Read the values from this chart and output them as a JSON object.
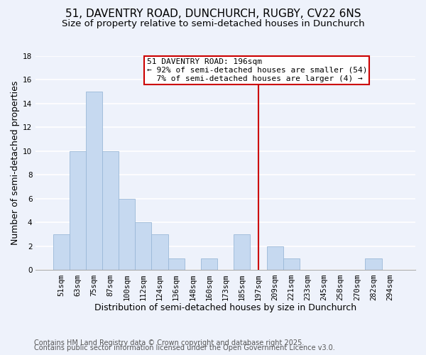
{
  "title": "51, DAVENTRY ROAD, DUNCHURCH, RUGBY, CV22 6NS",
  "subtitle": "Size of property relative to semi-detached houses in Dunchurch",
  "xlabel": "Distribution of semi-detached houses by size in Dunchurch",
  "ylabel": "Number of semi-detached properties",
  "footer_lines": [
    "Contains HM Land Registry data © Crown copyright and database right 2025.",
    "Contains public sector information licensed under the Open Government Licence v3.0."
  ],
  "bin_labels": [
    "51sqm",
    "63sqm",
    "75sqm",
    "87sqm",
    "100sqm",
    "112sqm",
    "124sqm",
    "136sqm",
    "148sqm",
    "160sqm",
    "173sqm",
    "185sqm",
    "197sqm",
    "209sqm",
    "221sqm",
    "233sqm",
    "245sqm",
    "258sqm",
    "270sqm",
    "282sqm",
    "294sqm"
  ],
  "bar_heights": [
    3,
    10,
    15,
    10,
    6,
    4,
    3,
    1,
    0,
    1,
    0,
    3,
    0,
    2,
    1,
    0,
    0,
    0,
    0,
    1,
    0
  ],
  "bar_color": "#c6d9f0",
  "bar_edge_color": "#9ab8d8",
  "vline_x_index": 12,
  "vline_color": "#cc0000",
  "annotation_title": "51 DAVENTRY ROAD: 196sqm",
  "annotation_line1": "← 92% of semi-detached houses are smaller (54)",
  "annotation_line2": "  7% of semi-detached houses are larger (4) →",
  "annotation_box_color": "#ffffff",
  "annotation_box_edge": "#cc0000",
  "ylim": [
    0,
    18
  ],
  "yticks": [
    0,
    2,
    4,
    6,
    8,
    10,
    12,
    14,
    16,
    18
  ],
  "bg_color": "#eef2fb",
  "grid_color": "#ffffff",
  "title_fontsize": 11,
  "subtitle_fontsize": 9.5,
  "xlabel_fontsize": 9,
  "ylabel_fontsize": 9,
  "tick_fontsize": 7.5,
  "footer_fontsize": 7,
  "annot_fontsize": 8
}
